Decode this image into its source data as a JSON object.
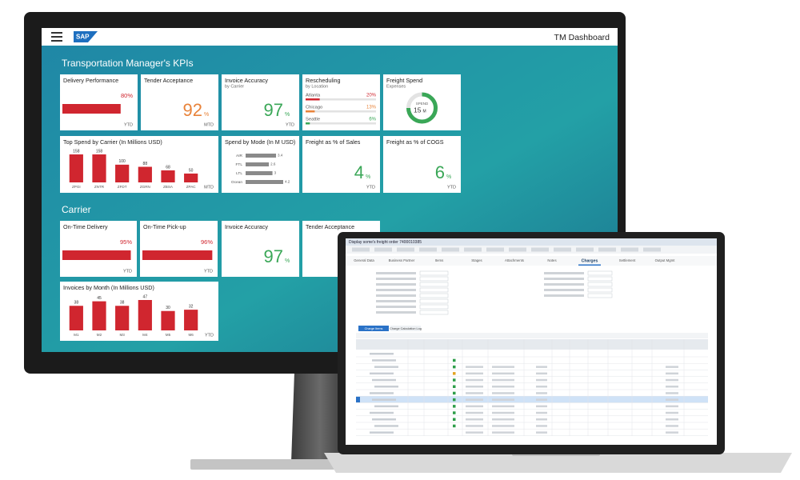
{
  "monitor": {
    "logo": "SAP",
    "app_title": "TM Dashboard",
    "sections": [
      {
        "title": "Transportation Manager's KPIs"
      },
      {
        "title": "Carrier"
      }
    ],
    "tiles": [
      {
        "title": "Delivery Performance",
        "value": 80,
        "value_label": "80%",
        "footer": "YTD"
      },
      {
        "title": "Tender Acceptance",
        "value": 92,
        "unit": "%",
        "footer": "MTD",
        "color": "#e8833a"
      },
      {
        "title": "Invoice Accuracy",
        "subtitle": "by Carrier",
        "value": 97,
        "unit": "%",
        "footer": "YTD",
        "color": "#3aa757"
      },
      {
        "title": "Rescheduling",
        "subtitle": "by Location",
        "rows": [
          {
            "label": "Atlanta",
            "value": 20,
            "value_label": "20%",
            "color": "#d0262f"
          },
          {
            "label": "Chicago",
            "value": 13,
            "value_label": "13%",
            "color": "#e8833a"
          },
          {
            "label": "Seattle",
            "value": 6,
            "value_label": "6%",
            "color": "#3aa757"
          }
        ]
      },
      {
        "title": "Freight Spend",
        "subtitle": "Expenses",
        "gauge": {
          "label": "SPEND",
          "value": 15,
          "unit": "M"
        }
      },
      {
        "title": "Top Spend by Carrier (In Millions USD)",
        "footer": "MTD",
        "chart": {
          "categories": [
            "ZPGI",
            "ZNTR",
            "ZFDT",
            "ZGRN",
            "ZBSA",
            "ZPAC"
          ],
          "values": [
            158,
            158,
            100,
            88,
            68,
            50
          ],
          "color": "#d0262f"
        }
      },
      {
        "title": "Spend by Mode (In M USD)",
        "hbars": {
          "categories": [
            "AIR",
            "FTL",
            "LTL",
            "Ocean"
          ],
          "values": [
            3.4,
            2.6,
            3.0,
            4.2
          ],
          "color": "#8a8a8a"
        }
      },
      {
        "title": "Freight as % of Sales",
        "value": 4,
        "unit": "%",
        "footer": "YTD",
        "color": "#3aa757"
      },
      {
        "title": "Freight as % of COGS",
        "value": 6,
        "unit": "%",
        "footer": "YTD",
        "color": "#3aa757"
      },
      {
        "title": "On-Time Delivery",
        "value": 95,
        "value_label": "95%",
        "footer": "YTD"
      },
      {
        "title": "On-Time Pick-up",
        "value": 96,
        "value_label": "96%",
        "footer": "YTD"
      },
      {
        "title": "Invoice Accuracy",
        "value": 97,
        "unit": "%",
        "color": "#3aa757"
      },
      {
        "title": "Tender Acceptance"
      },
      {
        "title": "Invoices by Month (In Millions USD)",
        "footer": "YTD",
        "chart": {
          "categories": [
            "M1",
            "M2",
            "M3",
            "M4",
            "M5",
            "M6"
          ],
          "values": [
            38,
            45,
            38,
            47,
            30,
            32
          ],
          "color": "#d0262f"
        }
      }
    ]
  },
  "laptop": {
    "title": "Display some's freight order 7400010385",
    "tabs": [
      "General Data",
      "Business Partner",
      "Items",
      "Stages",
      "Attachments",
      "Notes",
      "Charges",
      "Settlement",
      "Output Mgmt"
    ],
    "subtabs": [
      "Charge Items",
      "Charge Calculation Log"
    ]
  }
}
